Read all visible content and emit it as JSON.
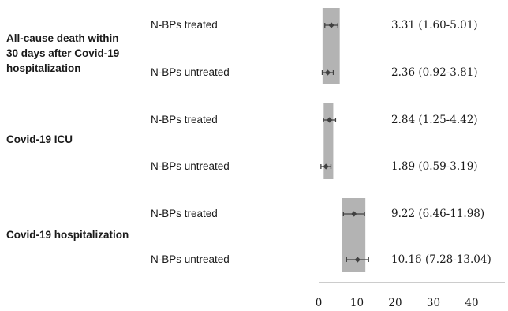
{
  "chart_data": {
    "type": "forest",
    "xlim": [
      0,
      50
    ],
    "ticks": [
      0,
      10,
      20,
      30,
      40
    ],
    "grid": false,
    "outcomes": [
      {
        "label_lines": [
          "All-cause death within",
          "30 days after Covid-19",
          "hospitalization"
        ],
        "rows": [
          {
            "group": "N-BPs treated",
            "estimate": 3.31,
            "lower": 1.6,
            "upper": 5.01,
            "label": "3.31 (1.60-5.01)"
          },
          {
            "group": "N-BPs untreated",
            "estimate": 2.36,
            "lower": 0.92,
            "upper": 3.81,
            "label": "2.36 (0.92-3.81)"
          }
        ],
        "band": [
          1.0,
          5.5
        ]
      },
      {
        "label_lines": [
          "Covid-19 ICU"
        ],
        "rows": [
          {
            "group": "N-BPs treated",
            "estimate": 2.84,
            "lower": 1.25,
            "upper": 4.42,
            "label": "2.84 (1.25-4.42)"
          },
          {
            "group": "N-BPs untreated",
            "estimate": 1.89,
            "lower": 0.59,
            "upper": 3.19,
            "label": "1.89 (0.59-3.19)"
          }
        ],
        "band": [
          1.3,
          3.8
        ]
      },
      {
        "label_lines": [
          "Covid-19 hospitalization"
        ],
        "rows": [
          {
            "group": "N-BPs treated",
            "estimate": 9.22,
            "lower": 6.46,
            "upper": 11.98,
            "label": "9.22 (6.46-11.98)"
          },
          {
            "group": "N-BPs untreated",
            "estimate": 10.16,
            "lower": 7.28,
            "upper": 13.04,
            "label": "10.16 (7.28-13.04)"
          }
        ],
        "band": [
          6.0,
          12.2
        ]
      }
    ],
    "colors": {
      "band": "#b3b3b3",
      "point": "#404040",
      "axis": "#999999",
      "text": "#1a1a1a"
    }
  }
}
